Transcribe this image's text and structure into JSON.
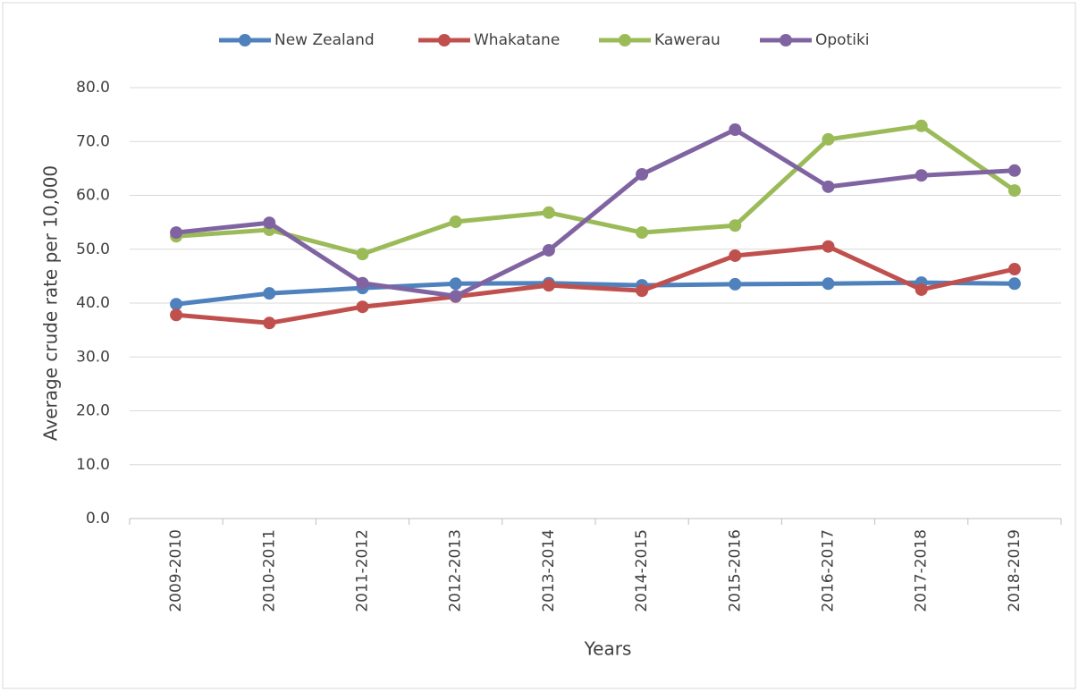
{
  "chart_data": {
    "type": "line",
    "x_label": "Years",
    "y_label": "Average crude rate per 10,000",
    "categories": [
      "2009-2010",
      "2010-2011",
      "2011-2012",
      "2012-2013",
      "2013-2014",
      "2014-2015",
      "2015-2016",
      "2016-2017",
      "2017-2018",
      "2018-2019"
    ],
    "series": [
      {
        "name": "New Zealand",
        "color": "#4f81bd",
        "values": [
          39.8,
          41.8,
          42.8,
          43.6,
          43.7,
          43.3,
          43.5,
          43.6,
          43.8,
          43.6
        ]
      },
      {
        "name": "Whakatane",
        "color": "#c0504d",
        "values": [
          37.8,
          36.3,
          39.3,
          41.2,
          43.3,
          42.3,
          48.8,
          50.5,
          42.5,
          46.3
        ]
      },
      {
        "name": "Kawerau",
        "color": "#9bbb59",
        "values": [
          52.4,
          53.6,
          49.1,
          55.1,
          56.8,
          53.1,
          54.4,
          70.4,
          72.9,
          60.9
        ]
      },
      {
        "name": "Opotiki",
        "color": "#8064a2",
        "values": [
          53.1,
          54.9,
          43.7,
          41.3,
          49.8,
          63.9,
          72.2,
          61.6,
          63.7,
          64.6
        ]
      }
    ],
    "ylim": [
      0,
      80
    ],
    "yticks": [
      {
        "value": 0,
        "label": "0.0"
      },
      {
        "value": 10,
        "label": "10.0"
      },
      {
        "value": 20,
        "label": "20.0"
      },
      {
        "value": 30,
        "label": "30.0"
      },
      {
        "value": 40,
        "label": "40.0"
      },
      {
        "value": 50,
        "label": "50.0"
      },
      {
        "value": 60,
        "label": "60.0"
      },
      {
        "value": 70,
        "label": "70.0"
      },
      {
        "value": 80,
        "label": "80.0"
      }
    ],
    "grid": true,
    "legend": "top"
  }
}
